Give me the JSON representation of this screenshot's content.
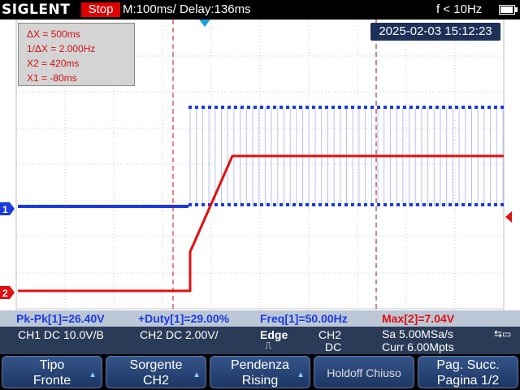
{
  "header": {
    "brand": "SIGLENT",
    "run_state": "Stop",
    "timebase": "M:100ms/ Delay:136ms",
    "trigger_freq": "f < 10Hz"
  },
  "cursor_info": {
    "dx": "ΔX = 500ms",
    "inv_dx": "1/ΔX = 2.000Hz",
    "x2": "X2 = 420ms",
    "x1": "X1 = -80ms"
  },
  "datetime": "2025-02-03 15:12:23",
  "channel_markers": {
    "ch1": "1",
    "ch2": "2"
  },
  "measurements": {
    "pkpk": "Pk-Pk[1]=26.40V",
    "duty": "+Duty[1]=29.00%",
    "freq": "Freq[1]=50.00Hz",
    "max": "Max[2]=7.04V"
  },
  "channel_info": {
    "ch1": "CH1 DC 10.0V/B",
    "ch2": "CH2 DC 2.00V/",
    "trigger_type": "Edge",
    "trigger_source": "CH2",
    "trigger_coupling": "DC",
    "sample_rate": "Sa 5.00MSa/s",
    "memory": "Curr 6.00Mpts"
  },
  "colors": {
    "ch1": "#1a3be0",
    "ch2": "#e01010",
    "grid": "#c8c8c8",
    "accent": "#e00000"
  },
  "menu": {
    "b1_top": "Tipo",
    "b1_bottom": "Fronte",
    "b2_top": "Sorgente",
    "b2_bottom": "CH2",
    "b3_top": "Pendenza",
    "b3_bottom": "Rising",
    "b4": "Holdoff  Chiuso",
    "b5_top": "Pag. Succ.",
    "b5_bottom": "Pagina 1/2"
  }
}
